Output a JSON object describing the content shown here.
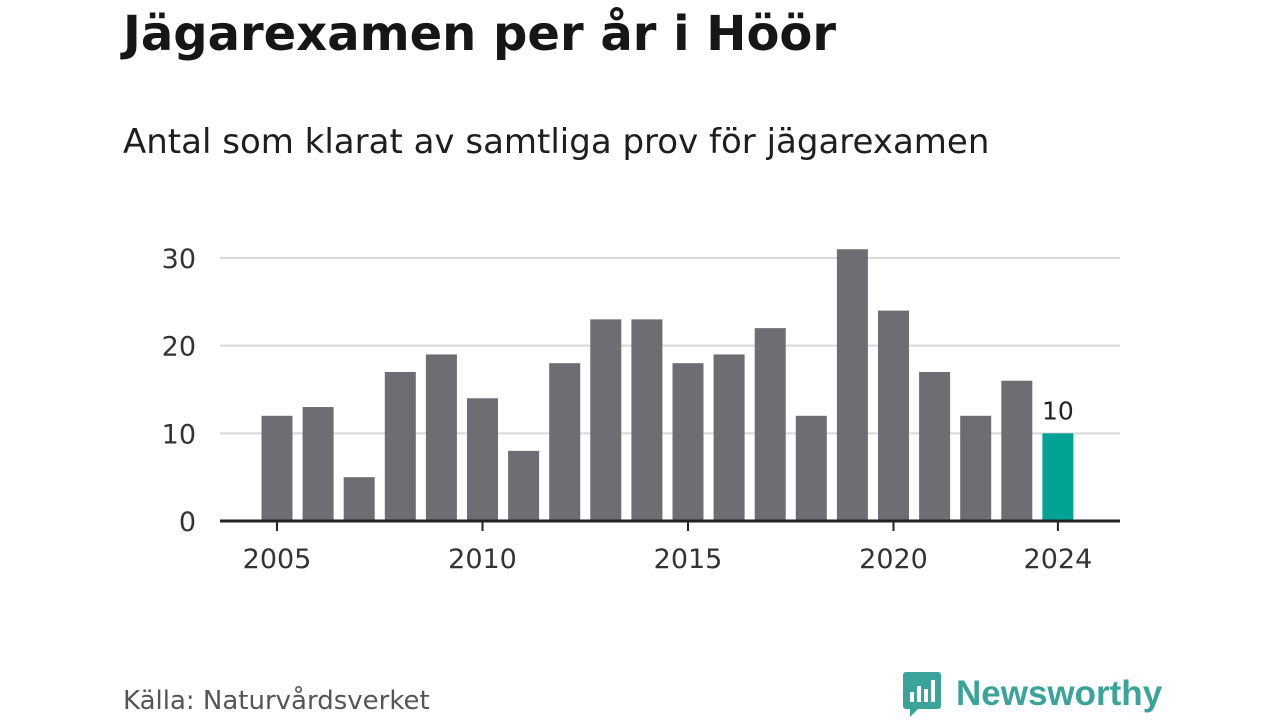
{
  "header": {
    "title": "Jägarexamen per år i Höör",
    "subtitle": "Antal som klarat av samtliga prov för jägarexamen"
  },
  "footer": {
    "source": "Källa: Naturvårdsverket",
    "brand": "Newsworthy",
    "brand_icon": "newsworthy-logo-icon"
  },
  "colors": {
    "bar": "#6e6d73",
    "highlight": "#00a394",
    "grid": "#d9d9d9",
    "axis": "#222222",
    "brand": "#3aa49a"
  },
  "chart_data": {
    "type": "bar",
    "title": "Jägarexamen per år i Höör",
    "subtitle": "Antal som klarat av samtliga prov för jägarexamen",
    "x": [
      2005,
      2006,
      2007,
      2008,
      2009,
      2010,
      2011,
      2012,
      2013,
      2014,
      2015,
      2016,
      2017,
      2018,
      2019,
      2020,
      2021,
      2022,
      2023,
      2024
    ],
    "values": [
      12,
      13,
      5,
      17,
      19,
      14,
      8,
      18,
      23,
      23,
      18,
      19,
      22,
      12,
      31,
      24,
      17,
      12,
      16,
      10
    ],
    "highlight": 2024,
    "data_labels": [
      {
        "x": 2024,
        "text": "10"
      }
    ],
    "ylim": [
      0,
      30
    ],
    "yticks": [
      0,
      10,
      20,
      30
    ],
    "xticks": [
      2005,
      2010,
      2015,
      2020,
      2024
    ],
    "xlabel": "",
    "ylabel": "",
    "grid": "horizontal",
    "legend": "none"
  }
}
